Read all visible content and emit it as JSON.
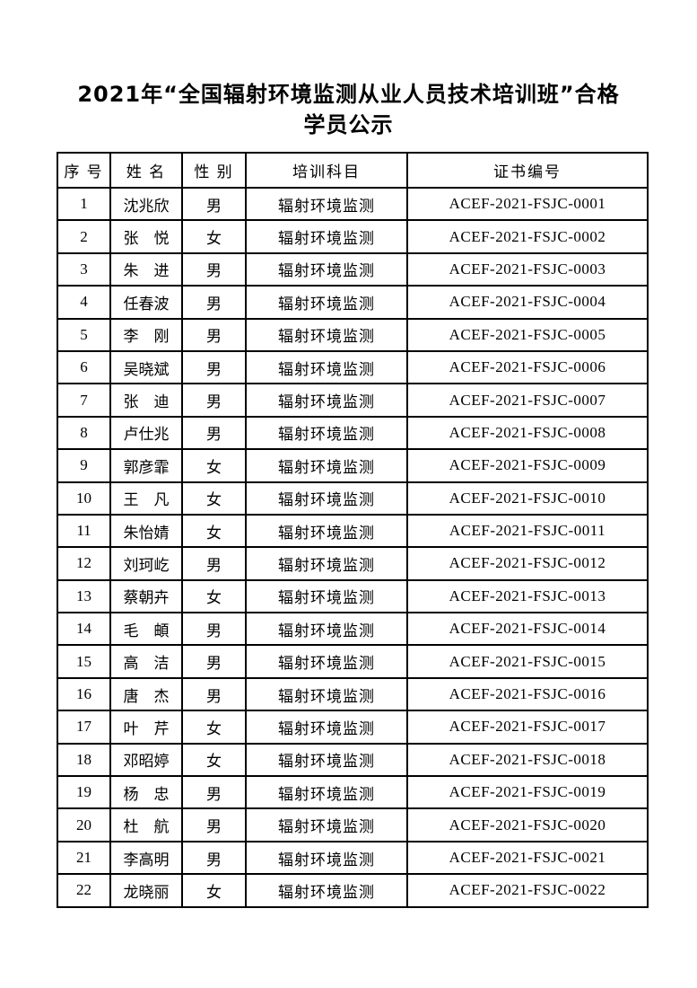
{
  "document": {
    "title_line1": "2021年“全国辐射环境监测从业人员技术培训班”合格",
    "title_line2": "学员公示"
  },
  "table": {
    "headers": {
      "no": "序 号",
      "name": "姓  名",
      "gender": "性  别",
      "subject": "培训科目",
      "cert": "证书编号"
    },
    "rows": [
      {
        "no": "1",
        "name": "沈兆欣",
        "gender": "男",
        "subject": "辐射环境监测",
        "cert": "ACEF-2021-FSJC-0001"
      },
      {
        "no": "2",
        "name": "张　悦",
        "gender": "女",
        "subject": "辐射环境监测",
        "cert": "ACEF-2021-FSJC-0002"
      },
      {
        "no": "3",
        "name": "朱　进",
        "gender": "男",
        "subject": "辐射环境监测",
        "cert": "ACEF-2021-FSJC-0003"
      },
      {
        "no": "4",
        "name": "任春波",
        "gender": "男",
        "subject": "辐射环境监测",
        "cert": "ACEF-2021-FSJC-0004"
      },
      {
        "no": "5",
        "name": "李　刚",
        "gender": "男",
        "subject": "辐射环境监测",
        "cert": "ACEF-2021-FSJC-0005"
      },
      {
        "no": "6",
        "name": "吴晓斌",
        "gender": "男",
        "subject": "辐射环境监测",
        "cert": "ACEF-2021-FSJC-0006"
      },
      {
        "no": "7",
        "name": "张　迪",
        "gender": "男",
        "subject": "辐射环境监测",
        "cert": "ACEF-2021-FSJC-0007"
      },
      {
        "no": "8",
        "name": "卢仕兆",
        "gender": "男",
        "subject": "辐射环境监测",
        "cert": "ACEF-2021-FSJC-0008"
      },
      {
        "no": "9",
        "name": "郭彦霏",
        "gender": "女",
        "subject": "辐射环境监测",
        "cert": "ACEF-2021-FSJC-0009"
      },
      {
        "no": "10",
        "name": "王　凡",
        "gender": "女",
        "subject": "辐射环境监测",
        "cert": "ACEF-2021-FSJC-0010"
      },
      {
        "no": "11",
        "name": "朱怡婧",
        "gender": "女",
        "subject": "辐射环境监测",
        "cert": "ACEF-2021-FSJC-0011"
      },
      {
        "no": "12",
        "name": "刘珂屹",
        "gender": "男",
        "subject": "辐射环境监测",
        "cert": "ACEF-2021-FSJC-0012"
      },
      {
        "no": "13",
        "name": "蔡朝卉",
        "gender": "女",
        "subject": "辐射环境监测",
        "cert": "ACEF-2021-FSJC-0013"
      },
      {
        "no": "14",
        "name": "毛　頔",
        "gender": "男",
        "subject": "辐射环境监测",
        "cert": "ACEF-2021-FSJC-0014"
      },
      {
        "no": "15",
        "name": "高　洁",
        "gender": "男",
        "subject": "辐射环境监测",
        "cert": "ACEF-2021-FSJC-0015"
      },
      {
        "no": "16",
        "name": "唐　杰",
        "gender": "男",
        "subject": "辐射环境监测",
        "cert": "ACEF-2021-FSJC-0016"
      },
      {
        "no": "17",
        "name": "叶　芹",
        "gender": "女",
        "subject": "辐射环境监测",
        "cert": "ACEF-2021-FSJC-0017"
      },
      {
        "no": "18",
        "name": "邓昭婷",
        "gender": "女",
        "subject": "辐射环境监测",
        "cert": "ACEF-2021-FSJC-0018"
      },
      {
        "no": "19",
        "name": "杨　忠",
        "gender": "男",
        "subject": "辐射环境监测",
        "cert": "ACEF-2021-FSJC-0019"
      },
      {
        "no": "20",
        "name": "杜　航",
        "gender": "男",
        "subject": "辐射环境监测",
        "cert": "ACEF-2021-FSJC-0020"
      },
      {
        "no": "21",
        "name": "李高明",
        "gender": "男",
        "subject": "辐射环境监测",
        "cert": "ACEF-2021-FSJC-0021"
      },
      {
        "no": "22",
        "name": "龙晓丽",
        "gender": "女",
        "subject": "辐射环境监测",
        "cert": "ACEF-2021-FSJC-0022"
      }
    ]
  }
}
